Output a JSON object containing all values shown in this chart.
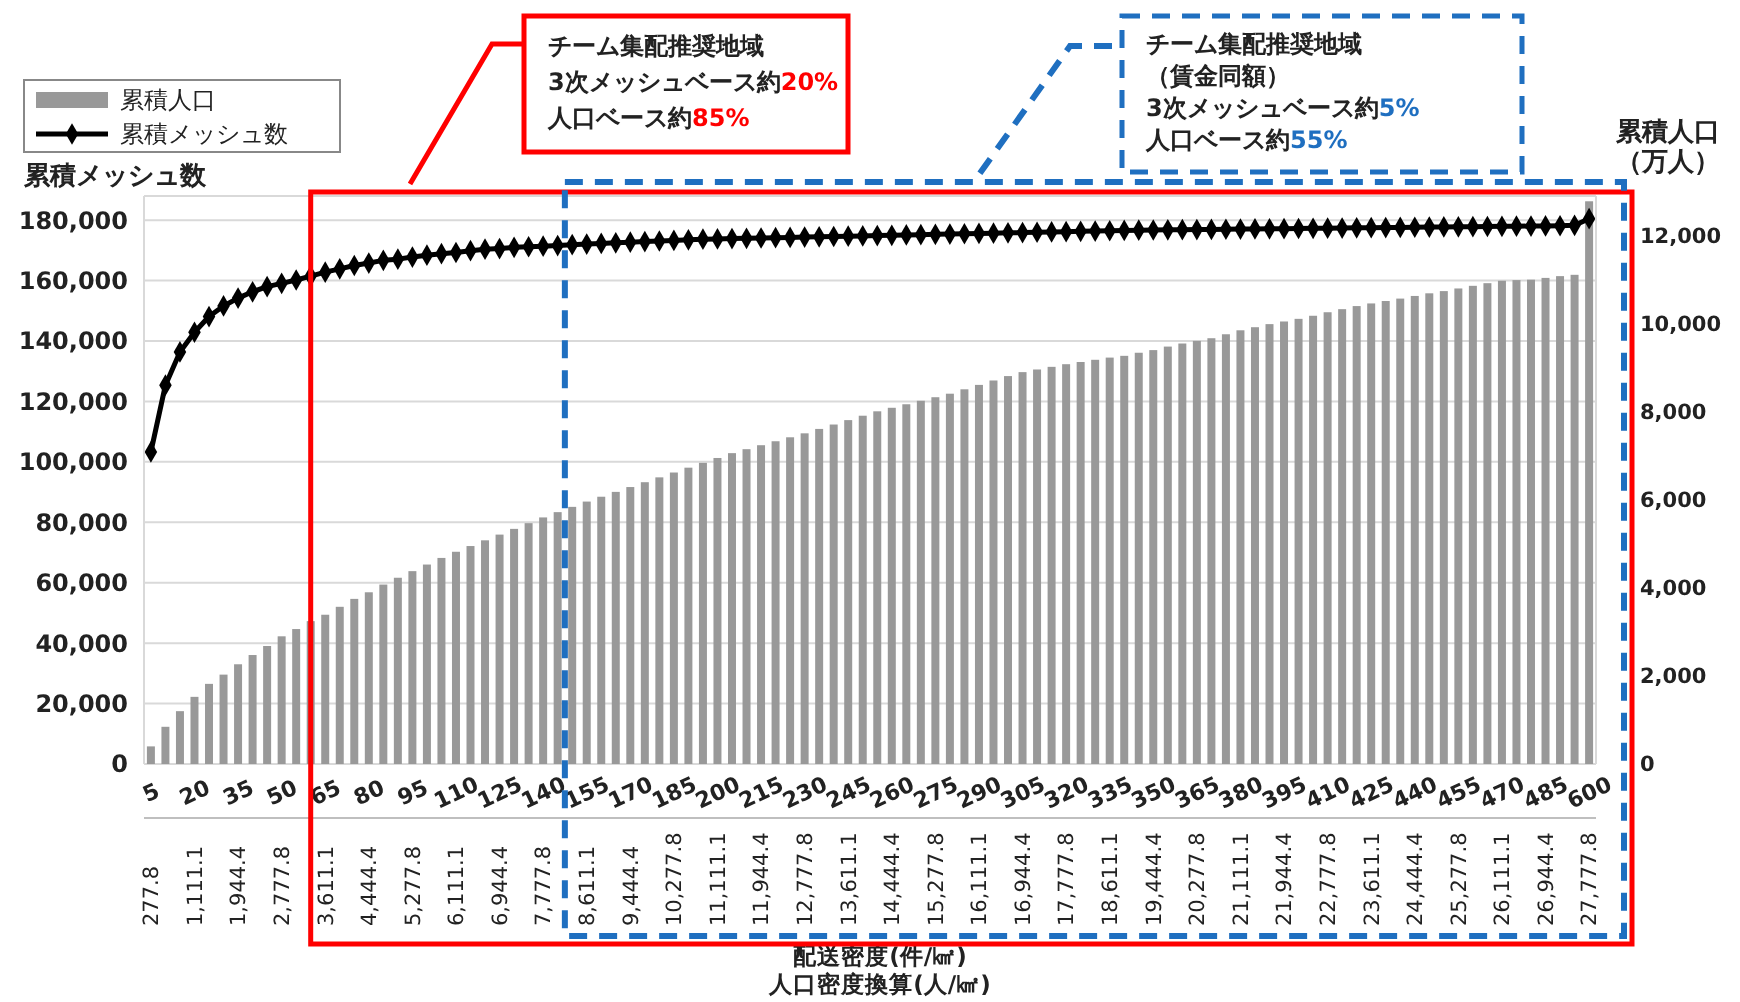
{
  "chart_data": {
    "type": "bar",
    "categories": [
      "5\n277.8",
      null,
      null,
      "20\n1,111.1",
      null,
      null,
      "35\n1,944.4",
      null,
      null,
      "50\n2,777.8",
      null,
      null,
      "65\n3,611.1",
      null,
      null,
      "80\n4,444.4",
      null,
      null,
      "95\n5,277.8",
      null,
      null,
      "110\n6,111.1",
      null,
      null,
      "125\n6,944.4",
      null,
      null,
      "140\n7,777.8",
      null,
      null,
      "155\n8,611.1",
      null,
      null,
      "170\n9,444.4",
      null,
      null,
      "185\n10,277.8",
      null,
      null,
      "200\n11,111.1",
      null,
      null,
      "215\n11,944.4",
      null,
      null,
      "230\n12,777.8",
      null,
      null,
      "245\n13,611.1",
      null,
      null,
      "260\n14,444.4",
      null,
      null,
      "275\n15,277.8",
      null,
      null,
      "290\n16,111.1",
      null,
      null,
      "305\n16,944.4",
      null,
      null,
      "320\n17,777.8",
      null,
      null,
      "335\n18,611.1",
      null,
      null,
      "350\n19,444.4",
      null,
      null,
      "365\n20,277.8",
      null,
      null,
      "380\n21,111.1",
      null,
      null,
      "395\n21,944.4",
      null,
      null,
      "410\n22,777.8",
      null,
      null,
      "425\n23,611.1",
      null,
      null,
      "440\n24,444.4",
      null,
      null,
      "455\n25,277.8",
      null,
      null,
      "470\n26,111.1",
      null,
      null,
      "485\n26,944.4",
      null,
      null,
      "600\n27,777.8"
    ],
    "series": [
      {
        "name": "累積人口",
        "axis": "y2",
        "color": "#999999",
        "values": [
          400,
          845,
          1200,
          1525,
          1820,
          2030,
          2265,
          2475,
          2680,
          2900,
          3065,
          3245,
          3390,
          3570,
          3750,
          3900,
          4075,
          4230,
          4380,
          4530,
          4680,
          4820,
          4950,
          5080,
          5210,
          5340,
          5470,
          5600,
          5720,
          5840,
          5960,
          6070,
          6180,
          6290,
          6400,
          6510,
          6620,
          6730,
          6840,
          6950,
          7060,
          7150,
          7240,
          7330,
          7420,
          7510,
          7610,
          7710,
          7810,
          7910,
          8010,
          8090,
          8170,
          8250,
          8330,
          8410,
          8510,
          8610,
          8710,
          8810,
          8900,
          8960,
          9020,
          9080,
          9130,
          9180,
          9230,
          9270,
          9340,
          9400,
          9480,
          9550,
          9610,
          9670,
          9760,
          9850,
          9920,
          9990,
          10050,
          10110,
          10180,
          10260,
          10330,
          10400,
          10460,
          10515,
          10570,
          10630,
          10690,
          10740,
          10800,
          10860,
          10920,
          10975,
          10990,
          11000,
          11040,
          11080,
          11110,
          12780
        ]
      },
      {
        "name": "累積メッシュ数",
        "type": "line",
        "axis": "y",
        "color": "#000000",
        "marker": "diamond",
        "values": [
          103300,
          125400,
          136400,
          142900,
          148100,
          151600,
          154200,
          156300,
          158000,
          159100,
          160200,
          161500,
          162800,
          163900,
          165000,
          165800,
          166700,
          167100,
          167800,
          168400,
          168900,
          169300,
          169900,
          170400,
          170600,
          171000,
          171200,
          171400,
          171600,
          171900,
          172100,
          172300,
          172500,
          172700,
          172900,
          173100,
          173300,
          173500,
          173700,
          173800,
          173900,
          174000,
          174100,
          174200,
          174300,
          174400,
          174500,
          174600,
          174700,
          174800,
          174900,
          175000,
          175100,
          175200,
          175300,
          175400,
          175500,
          175600,
          175700,
          175800,
          175900,
          176000,
          176100,
          176200,
          176300,
          176400,
          176500,
          176600,
          176700,
          176750,
          176800,
          176850,
          176900,
          176950,
          177000,
          177050,
          177100,
          177150,
          177200,
          177250,
          177300,
          177350,
          177400,
          177450,
          177500,
          177550,
          177600,
          177650,
          177700,
          177750,
          177800,
          177850,
          177900,
          177950,
          178000,
          178050,
          178100,
          178150,
          178300,
          180500
        ]
      }
    ],
    "ylim": [
      0,
      188000
    ],
    "yticks": [
      0,
      {
        "value": 20000,
        "label": "20,000"
      },
      {
        "value": 40000,
        "label": "40,000"
      },
      {
        "value": 60000,
        "label": "60,000"
      },
      {
        "value": 80000,
        "label": "80,000"
      },
      {
        "value": 100000,
        "label": "100,000"
      },
      {
        "value": 120000,
        "label": "120,000"
      },
      {
        "value": 140000,
        "label": "140,000"
      },
      {
        "value": 160000,
        "label": "160,000"
      },
      {
        "value": 180000,
        "label": "180,000"
      }
    ],
    "y2lim": [
      0,
      12900
    ],
    "y2ticks": [
      0,
      {
        "value": 2000,
        "label": "2,000"
      },
      {
        "value": 4000,
        "label": "4,000"
      },
      {
        "value": 6000,
        "label": "6,000"
      },
      {
        "value": 8000,
        "label": "8,000"
      },
      {
        "value": 10000,
        "label": "10,000"
      },
      {
        "value": 12000,
        "label": "12,000"
      }
    ],
    "ylabel": "累積メッシュ数",
    "y2label": "累積人口（万人）",
    "xlabel": "配送密度(件/㎢)\n人口密度換算(人/㎢)",
    "annotations": [
      "チーム集配推奨地域\n3次メッシュベース約20%\n人口ベース約85%",
      "チーム集配推奨地域（賃金同額）\n3次メッシュベース約5%\n人口ベース約55%"
    ],
    "grid": "y",
    "legend": "top left"
  }
}
